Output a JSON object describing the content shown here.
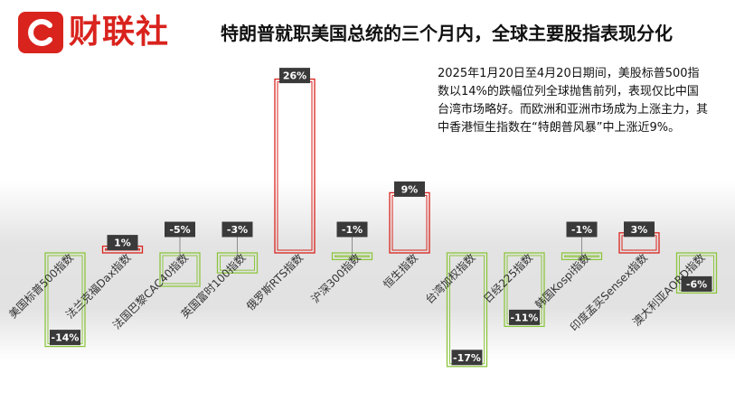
{
  "brand": {
    "name": "财联社",
    "color": "#d9231d"
  },
  "headline": "特朗普就职美国总统的三个月内，全球主要股指表现分化",
  "note": "2025年1月20日至4月20日期间，美股标普500指数以14%的跌幅位列全球抛售前列，表现仅比中国台湾市场略好。而欧洲和亚洲市场成为上涨主力，其中香港恒生指数在“特朗普风暴”中上涨近9%。",
  "colors": {
    "positive": "#d9231d",
    "negative": "#8dc63f",
    "badge": "#3a3a3a"
  },
  "chart_data": {
    "type": "bar",
    "categories": [
      "美国标普500指数",
      "法兰克福Dax指数",
      "法国巴黎CAC40指数",
      "英国富时100指数",
      "俄罗斯RTS指数",
      "沪深300指数",
      "恒生指数",
      "台湾加权指数",
      "日经225指数",
      "韩国Kospi指数",
      "印度孟买Sensex指数",
      "澳大利亚AORD指数"
    ],
    "values": [
      -14,
      1,
      -5,
      -3,
      26,
      -1,
      9,
      -17,
      -11,
      -1,
      3,
      -6
    ],
    "labels": [
      "-14%",
      "1%",
      "-5%",
      "-3%",
      "26%",
      "-1%",
      "9%",
      "-17%",
      "-11%",
      "-1%",
      "3%",
      "-6%"
    ],
    "title": "",
    "xlabel": "",
    "ylabel": "",
    "ylim": [
      -17,
      26
    ]
  }
}
